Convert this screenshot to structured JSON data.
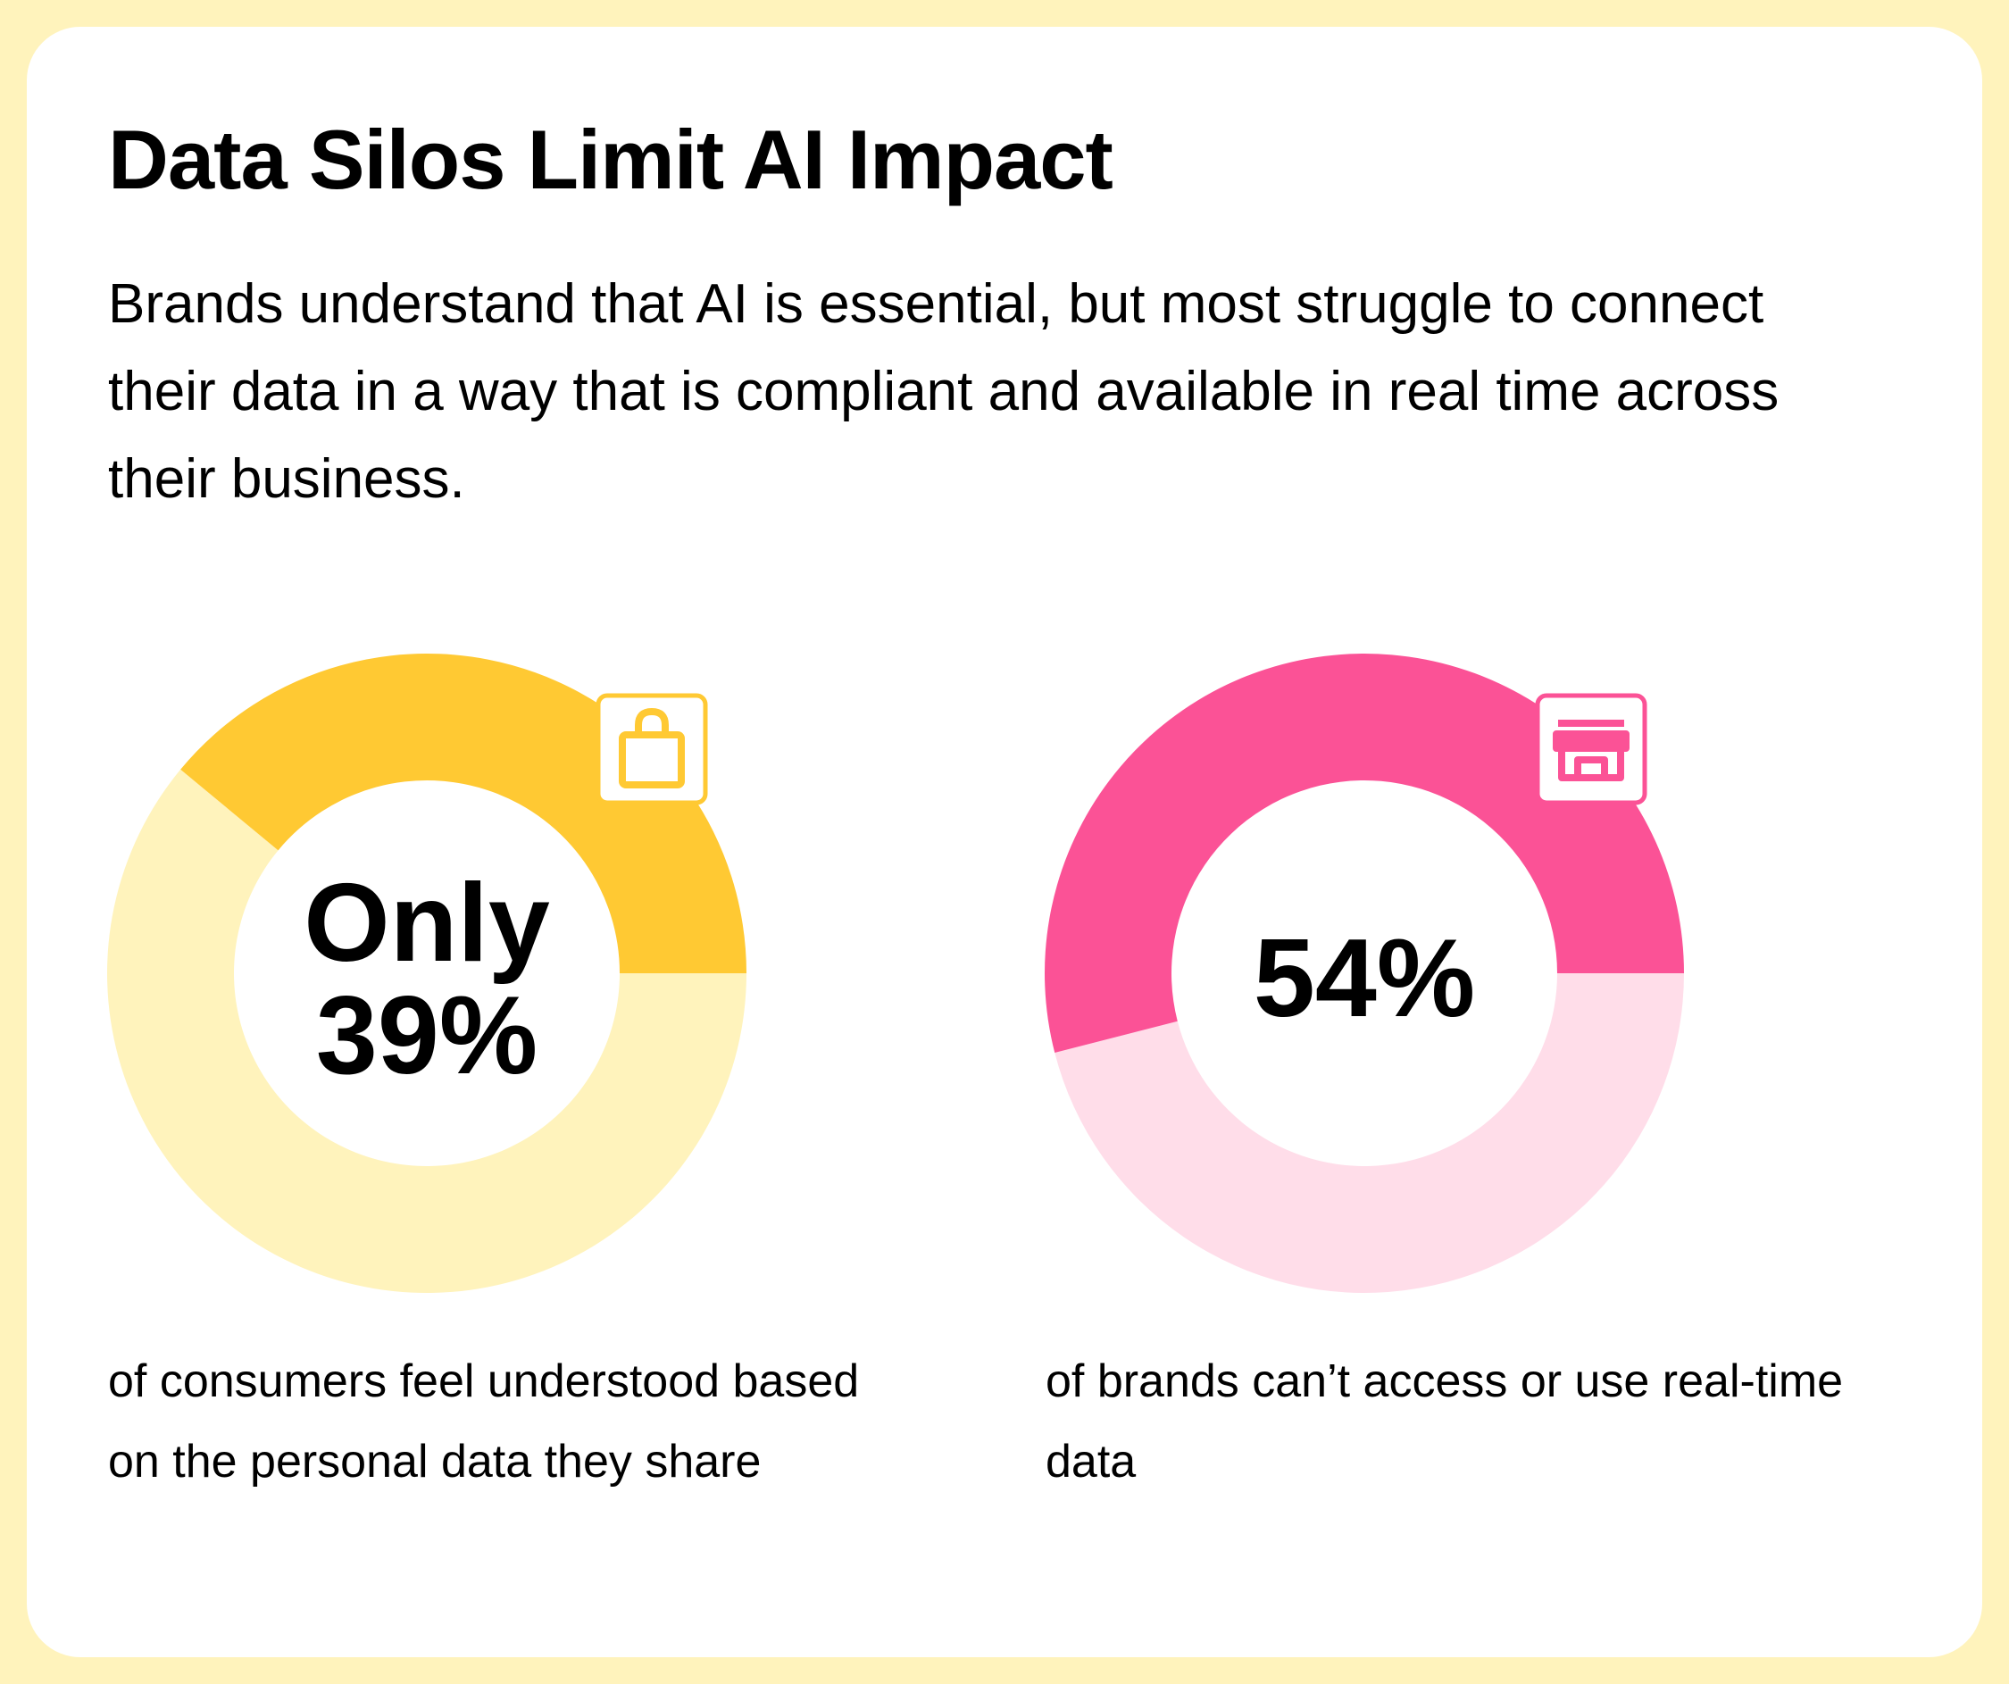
{
  "title": "Data Silos Limit AI Impact",
  "subtitle": "Brands understand that AI is essential, but most struggle to connect their data in a way that is compliant and available in real time across their business.",
  "chart_data": [
    {
      "type": "pie",
      "donut": true,
      "center_text": [
        "Only",
        "39%"
      ],
      "values": [
        39,
        61
      ],
      "colors": [
        "#FFC933",
        "#FFF3BC"
      ],
      "icon": "shopping-bag-icon",
      "accent": "#FFC933",
      "caption": "of consumers feel understood based on the personal data they share"
    },
    {
      "type": "pie",
      "donut": true,
      "center_text": [
        "54%"
      ],
      "values": [
        54,
        46
      ],
      "colors": [
        "#FB5296",
        "#FFDDE9"
      ],
      "icon": "storefront-icon",
      "accent": "#FB5296",
      "caption": "of brands can’t access or use real-time data"
    }
  ]
}
